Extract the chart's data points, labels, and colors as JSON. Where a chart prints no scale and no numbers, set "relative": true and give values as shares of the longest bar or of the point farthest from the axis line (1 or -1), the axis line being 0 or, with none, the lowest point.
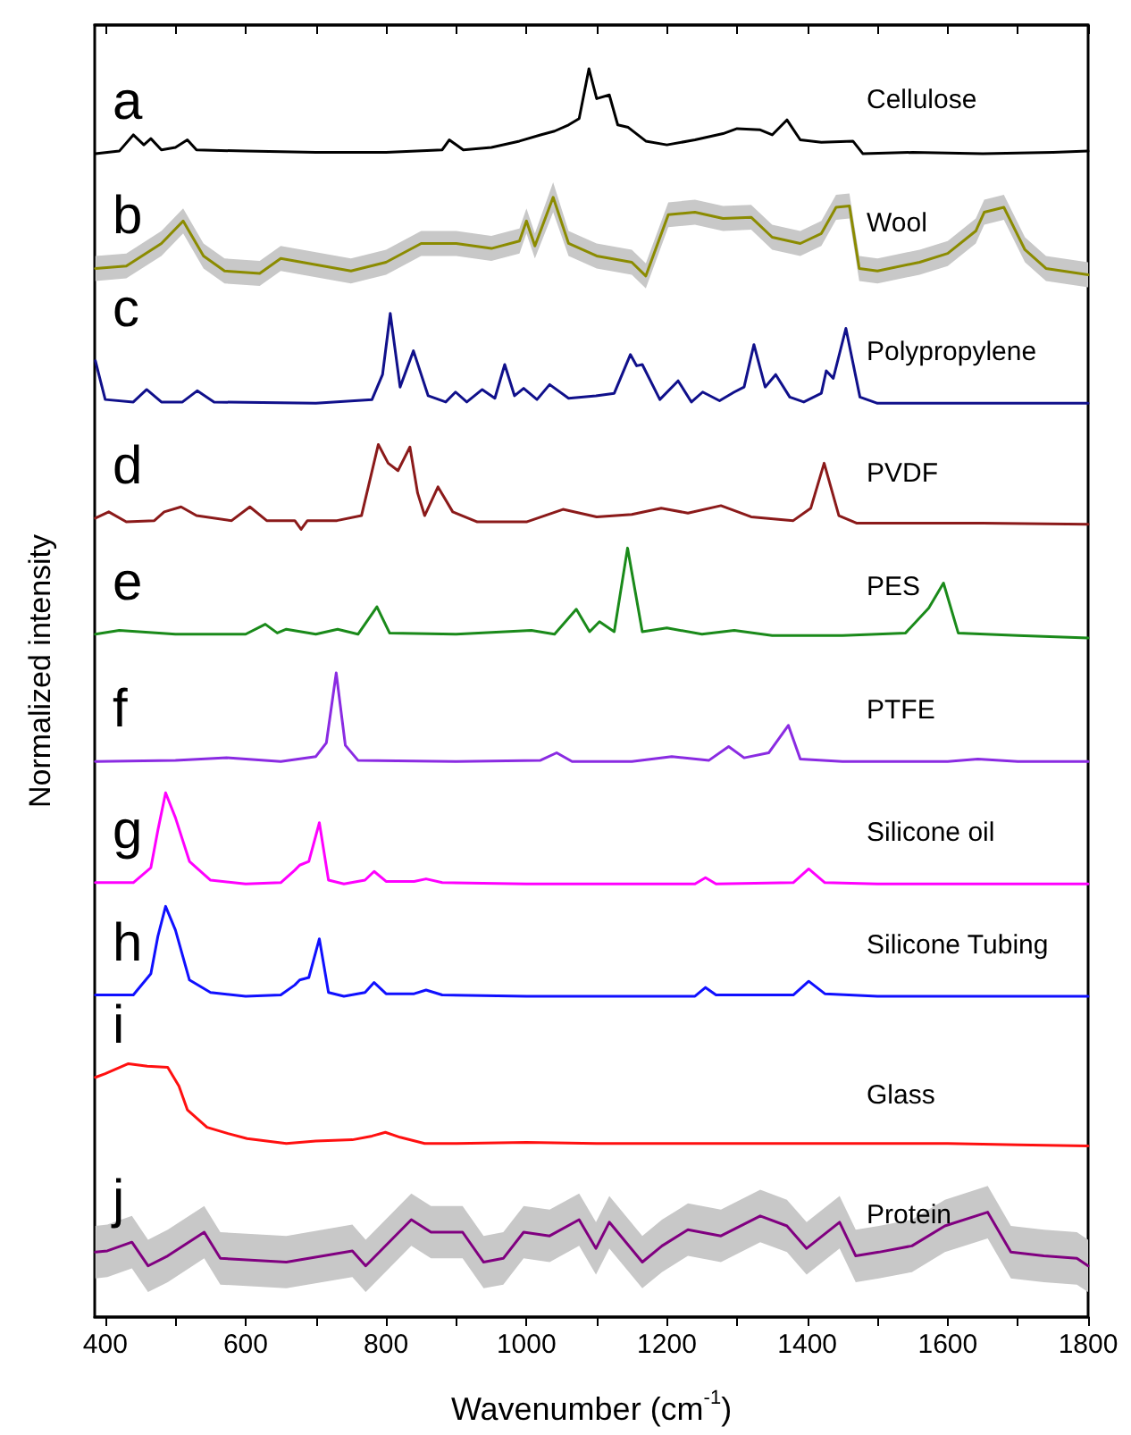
{
  "chart_data": {
    "type": "line",
    "relative": true,
    "xlabel": "Wavenumber (cm$^{-1}$)",
    "ylabel": "Normalized intensity",
    "xlim": [
      385,
      1800
    ],
    "xticks": [
      400,
      {
        "value": 500,
        "label": null
      },
      600,
      {
        "value": 700,
        "label": null
      },
      800,
      {
        "value": 900,
        "label": null
      },
      1000,
      {
        "value": 1100,
        "label": null
      },
      1200,
      {
        "value": 1300,
        "label": null
      },
      1400,
      {
        "value": 1500,
        "label": null
      },
      1600,
      {
        "value": 1700,
        "label": null
      },
      1800
    ],
    "legend": false,
    "marker": "none",
    "line_style": "solid",
    "annotations": [
      "a",
      "b",
      "c",
      "d",
      "e",
      "f",
      "g",
      "h",
      "i",
      "j"
    ],
    "series": [
      {
        "name": "Cellulose",
        "color": "#000000",
        "x": [
          386,
          420,
          440,
          455,
          465,
          480,
          500,
          517,
          530,
          600,
          700,
          800,
          880,
          890,
          910,
          950,
          990,
          1020,
          1040,
          1060,
          1075,
          1089,
          1100,
          1118,
          1130,
          1145,
          1170,
          1200,
          1240,
          1280,
          1300,
          1333,
          1350,
          1371,
          1390,
          1420,
          1465,
          1479,
          1550,
          1650,
          1750,
          1800
        ],
        "values": [
          0.932,
          0.934,
          0.947,
          0.939,
          0.944,
          0.935,
          0.937,
          0.943,
          0.935,
          0.934,
          0.933,
          0.933,
          0.935,
          0.943,
          0.935,
          0.937,
          0.942,
          0.947,
          0.95,
          0.955,
          0.96,
          1.0,
          0.976,
          0.979,
          0.955,
          0.953,
          0.942,
          0.939,
          0.943,
          0.948,
          0.952,
          0.951,
          0.947,
          0.959,
          0.943,
          0.941,
          0.942,
          0.932,
          0.933,
          0.932,
          0.933,
          0.934
        ]
      },
      {
        "name": "Wool",
        "color": "#8b8b00",
        "x": [
          386,
          430,
          480,
          511,
          540,
          570,
          620,
          650,
          700,
          750,
          800,
          850,
          900,
          950,
          990,
          1000,
          1012,
          1038,
          1060,
          1100,
          1150,
          1170,
          1202,
          1240,
          1280,
          1320,
          1350,
          1390,
          1420,
          1441,
          1460,
          1474,
          1500,
          1560,
          1600,
          1640,
          1652,
          1680,
          1710,
          1740,
          1800
        ],
        "values": [
          0.84,
          0.842,
          0.86,
          0.878,
          0.85,
          0.838,
          0.836,
          0.848,
          0.843,
          0.838,
          0.845,
          0.86,
          0.86,
          0.856,
          0.862,
          0.878,
          0.858,
          0.897,
          0.86,
          0.85,
          0.845,
          0.834,
          0.883,
          0.885,
          0.88,
          0.881,
          0.865,
          0.86,
          0.868,
          0.889,
          0.89,
          0.84,
          0.838,
          0.845,
          0.852,
          0.87,
          0.885,
          0.889,
          0.855,
          0.84,
          0.835
        ],
        "lower": [
          0.83,
          0.832,
          0.85,
          0.868,
          0.84,
          0.828,
          0.826,
          0.838,
          0.833,
          0.828,
          0.835,
          0.85,
          0.85,
          0.846,
          0.852,
          0.868,
          0.848,
          0.885,
          0.85,
          0.84,
          0.835,
          0.824,
          0.873,
          0.875,
          0.87,
          0.871,
          0.855,
          0.85,
          0.858,
          0.879,
          0.88,
          0.83,
          0.828,
          0.835,
          0.842,
          0.86,
          0.875,
          0.879,
          0.845,
          0.83,
          0.825
        ],
        "upper": [
          0.85,
          0.852,
          0.87,
          0.888,
          0.86,
          0.848,
          0.846,
          0.858,
          0.853,
          0.848,
          0.855,
          0.87,
          0.87,
          0.866,
          0.872,
          0.888,
          0.868,
          0.909,
          0.87,
          0.86,
          0.855,
          0.844,
          0.893,
          0.895,
          0.89,
          0.891,
          0.875,
          0.87,
          0.878,
          0.899,
          0.9,
          0.85,
          0.848,
          0.855,
          0.862,
          0.88,
          0.895,
          0.899,
          0.865,
          0.85,
          0.845
        ]
      },
      {
        "name": "Polypropylene",
        "color": "#10108b",
        "x": [
          386,
          400,
          440,
          459,
          480,
          510,
          531,
          555,
          700,
          780,
          795,
          806,
          820,
          839,
          860,
          885,
          899,
          915,
          937,
          955,
          969,
          983,
          996,
          1015,
          1033,
          1060,
          1099,
          1125,
          1148,
          1157,
          1165,
          1190,
          1216,
          1235,
          1251,
          1275,
          1296,
          1310,
          1324,
          1340,
          1355,
          1375,
          1395,
          1420,
          1427,
          1437,
          1455,
          1475,
          1500,
          1600,
          1700,
          1800
        ],
        "values": [
          0.766,
          0.735,
          0.733,
          0.743,
          0.733,
          0.733,
          0.742,
          0.733,
          0.732,
          0.735,
          0.755,
          0.804,
          0.745,
          0.774,
          0.738,
          0.733,
          0.741,
          0.733,
          0.743,
          0.736,
          0.763,
          0.738,
          0.744,
          0.735,
          0.747,
          0.736,
          0.738,
          0.74,
          0.771,
          0.762,
          0.763,
          0.735,
          0.75,
          0.733,
          0.741,
          0.734,
          0.741,
          0.745,
          0.779,
          0.745,
          0.755,
          0.737,
          0.733,
          0.74,
          0.758,
          0.752,
          0.792,
          0.737,
          0.732,
          0.732,
          0.732,
          0.732
        ]
      },
      {
        "name": "PVDF",
        "color": "#8b1a1a",
        "x": [
          386,
          405,
          430,
          470,
          484,
          508,
          530,
          580,
          606,
          630,
          670,
          679,
          688,
          730,
          765,
          789,
          803,
          817,
          834,
          845,
          855,
          874,
          895,
          930,
          1000,
          1052,
          1100,
          1150,
          1192,
          1230,
          1277,
          1320,
          1380,
          1405,
          1424,
          1445,
          1470,
          1550,
          1650,
          1800
        ],
        "values": [
          0.64,
          0.645,
          0.637,
          0.638,
          0.645,
          0.649,
          0.642,
          0.638,
          0.649,
          0.638,
          0.638,
          0.631,
          0.638,
          0.638,
          0.642,
          0.699,
          0.684,
          0.678,
          0.697,
          0.66,
          0.642,
          0.665,
          0.645,
          0.637,
          0.637,
          0.647,
          0.641,
          0.643,
          0.648,
          0.644,
          0.65,
          0.641,
          0.638,
          0.648,
          0.684,
          0.642,
          0.636,
          0.636,
          0.636,
          0.635
        ]
      },
      {
        "name": "PES",
        "color": "#1a8a1a",
        "x": [
          386,
          420,
          500,
          600,
          628,
          645,
          658,
          700,
          731,
          760,
          787,
          805,
          900,
          1007,
          1040,
          1071,
          1090,
          1104,
          1125,
          1144,
          1165,
          1200,
          1250,
          1296,
          1350,
          1450,
          1540,
          1573,
          1594,
          1615,
          1700,
          1800
        ],
        "values": [
          0.547,
          0.55,
          0.547,
          0.547,
          0.555,
          0.548,
          0.551,
          0.547,
          0.551,
          0.547,
          0.569,
          0.548,
          0.547,
          0.55,
          0.547,
          0.567,
          0.549,
          0.557,
          0.549,
          0.616,
          0.549,
          0.552,
          0.547,
          0.55,
          0.546,
          0.546,
          0.548,
          0.568,
          0.588,
          0.548,
          0.546,
          0.544
        ]
      },
      {
        "name": "PTFE",
        "color": "#8a2be2",
        "x": [
          386,
          500,
          573,
          650,
          700,
          715,
          729,
          742,
          760,
          900,
          1020,
          1043,
          1065,
          1150,
          1207,
          1260,
          1288,
          1310,
          1345,
          1373,
          1390,
          1450,
          1600,
          1643,
          1700,
          1800
        ],
        "values": [
          0.445,
          0.446,
          0.448,
          0.445,
          0.449,
          0.46,
          0.516,
          0.458,
          0.446,
          0.445,
          0.446,
          0.452,
          0.445,
          0.445,
          0.449,
          0.446,
          0.457,
          0.448,
          0.452,
          0.474,
          0.447,
          0.445,
          0.445,
          0.447,
          0.445,
          0.445
        ]
      },
      {
        "name": "Silicone oil",
        "color": "#ff00ff",
        "x": [
          386,
          440,
          465,
          475,
          486,
          500,
          520,
          550,
          600,
          650,
          670,
          677,
          690,
          705,
          718,
          740,
          770,
          783,
          800,
          840,
          857,
          880,
          1000,
          1240,
          1255,
          1270,
          1380,
          1402,
          1425,
          1500,
          1650,
          1800
        ],
        "values": [
          0.348,
          0.348,
          0.36,
          0.39,
          0.42,
          0.4,
          0.365,
          0.35,
          0.347,
          0.348,
          0.358,
          0.362,
          0.365,
          0.396,
          0.35,
          0.347,
          0.35,
          0.357,
          0.349,
          0.349,
          0.351,
          0.348,
          0.347,
          0.347,
          0.352,
          0.347,
          0.348,
          0.359,
          0.348,
          0.347,
          0.347,
          0.347
        ]
      },
      {
        "name": "Silicone Tubing",
        "color": "#1010ff",
        "x": [
          386,
          440,
          465,
          475,
          486,
          500,
          520,
          550,
          600,
          650,
          670,
          677,
          690,
          705,
          718,
          740,
          770,
          783,
          800,
          840,
          857,
          880,
          1000,
          1240,
          1255,
          1270,
          1380,
          1402,
          1425,
          1500,
          1650,
          1800
        ],
        "values": [
          0.258,
          0.258,
          0.275,
          0.305,
          0.329,
          0.31,
          0.27,
          0.26,
          0.257,
          0.258,
          0.266,
          0.27,
          0.272,
          0.303,
          0.26,
          0.257,
          0.26,
          0.268,
          0.259,
          0.259,
          0.262,
          0.258,
          0.257,
          0.257,
          0.264,
          0.258,
          0.258,
          0.269,
          0.259,
          0.257,
          0.257,
          0.257
        ]
      },
      {
        "name": "Glass",
        "color": "#ff1010",
        "x": [
          386,
          400,
          433,
          460,
          489,
          505,
          517,
          545,
          575,
          602,
          658,
          700,
          752,
          780,
          799,
          820,
          855,
          900,
          1000,
          1100,
          1200,
          1300,
          1400,
          1500,
          1600,
          1700,
          1800
        ],
        "values": [
          0.192,
          0.195,
          0.203,
          0.201,
          0.2,
          0.185,
          0.166,
          0.152,
          0.147,
          0.143,
          0.139,
          0.141,
          0.142,
          0.145,
          0.148,
          0.144,
          0.139,
          0.139,
          0.14,
          0.139,
          0.139,
          0.139,
          0.139,
          0.139,
          0.139,
          0.138,
          0.137
        ]
      },
      {
        "name": "Protein",
        "color": "#800080",
        "x": [
          386,
          403,
          438,
          461,
          489,
          541,
          564,
          658,
          752,
          771,
          836,
          864,
          909,
          939,
          967,
          996,
          1033,
          1075,
          1099,
          1118,
          1165,
          1193,
          1230,
          1277,
          1333,
          1371,
          1399,
          1446,
          1469,
          1502,
          1549,
          1596,
          1657,
          1690,
          1737,
          1784,
          1800
        ],
        "values": [
          0.052,
          0.053,
          0.06,
          0.041,
          0.049,
          0.068,
          0.047,
          0.044,
          0.053,
          0.041,
          0.078,
          0.068,
          0.068,
          0.044,
          0.047,
          0.068,
          0.065,
          0.078,
          0.055,
          0.076,
          0.044,
          0.057,
          0.07,
          0.065,
          0.081,
          0.073,
          0.055,
          0.076,
          0.049,
          0.052,
          0.057,
          0.073,
          0.084,
          0.052,
          0.049,
          0.047,
          0.041
        ],
        "lower": [
          0.031,
          0.032,
          0.039,
          0.02,
          0.028,
          0.047,
          0.026,
          0.023,
          0.032,
          0.02,
          0.057,
          0.047,
          0.047,
          0.023,
          0.026,
          0.047,
          0.044,
          0.057,
          0.034,
          0.055,
          0.023,
          0.036,
          0.049,
          0.044,
          0.06,
          0.052,
          0.034,
          0.055,
          0.028,
          0.031,
          0.036,
          0.052,
          0.063,
          0.031,
          0.028,
          0.026,
          0.02
        ],
        "upper": [
          0.073,
          0.074,
          0.081,
          0.062,
          0.07,
          0.089,
          0.068,
          0.065,
          0.074,
          0.062,
          0.099,
          0.089,
          0.089,
          0.065,
          0.068,
          0.089,
          0.086,
          0.099,
          0.076,
          0.097,
          0.065,
          0.078,
          0.091,
          0.086,
          0.102,
          0.094,
          0.076,
          0.097,
          0.07,
          0.073,
          0.078,
          0.094,
          0.105,
          0.073,
          0.07,
          0.068,
          0.062
        ]
      }
    ]
  }
}
